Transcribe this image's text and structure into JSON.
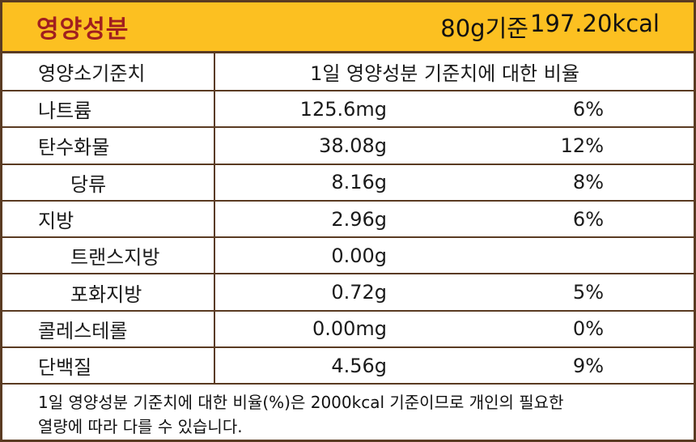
{
  "header": {
    "title": "영양성분",
    "basis_amount": "80g기준",
    "basis_kcal": "197.20kcal"
  },
  "table": {
    "col_header_left": "영양소기준치",
    "col_header_right": "1일 영양성분 기준치에 대한 비율",
    "rows": [
      {
        "name": "나트륨",
        "amount": "125.6mg",
        "percent": "6%"
      },
      {
        "name": "탄수화물",
        "amount": "38.08g",
        "percent": "12%"
      },
      {
        "name": "당류",
        "amount": "8.16g",
        "percent": "8%"
      },
      {
        "name": "지방",
        "amount": "2.96g",
        "percent": "6%"
      },
      {
        "name": "트랜스지방",
        "amount": "0.00g",
        "percent": ""
      },
      {
        "name": "포화지방",
        "amount": "0.72g",
        "percent": "5%"
      },
      {
        "name": "콜레스테롤",
        "amount": "0.00mg",
        "percent": "0%"
      },
      {
        "name": "단백질",
        "amount": "4.56g",
        "percent": "9%"
      }
    ]
  },
  "footer": {
    "line1": "1일 영양성분 기준치에 대한 비율(%)은 2000kcal 기준이므로 개인의 필요한",
    "line2": "열량에 따라 다를 수 있습니다."
  },
  "colors": {
    "header_bg": "#fcc021",
    "title_text": "#a11f1f",
    "border": "#5a3b22"
  }
}
